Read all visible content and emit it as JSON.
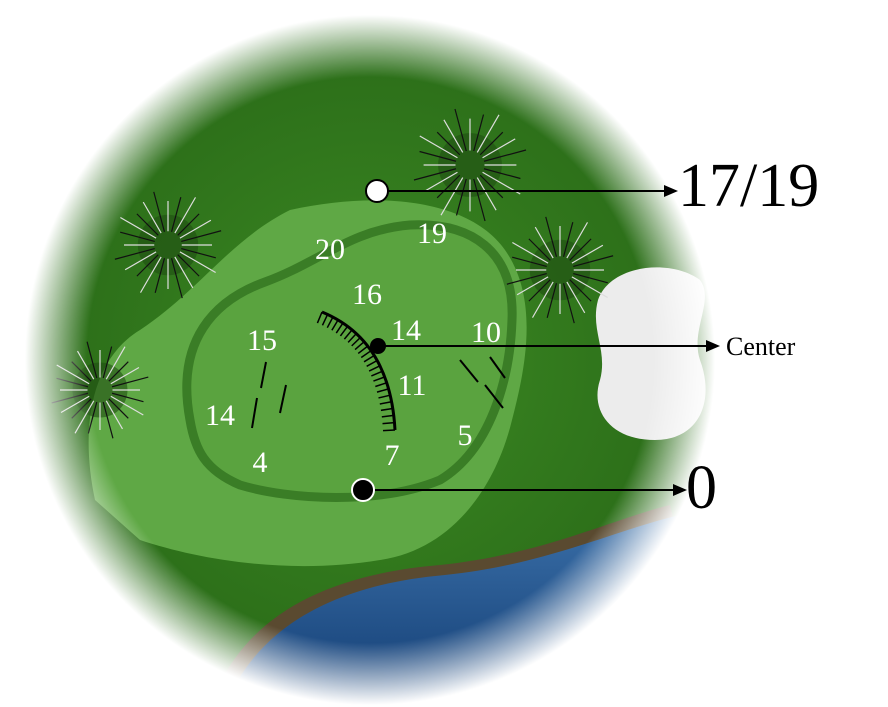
{
  "labels": {
    "back": "17/19",
    "center": "Center",
    "front": "0"
  },
  "green_numbers": [
    "20",
    "19",
    "16",
    "14",
    "10",
    "15",
    "11",
    "14",
    "5",
    "4",
    "7"
  ]
}
